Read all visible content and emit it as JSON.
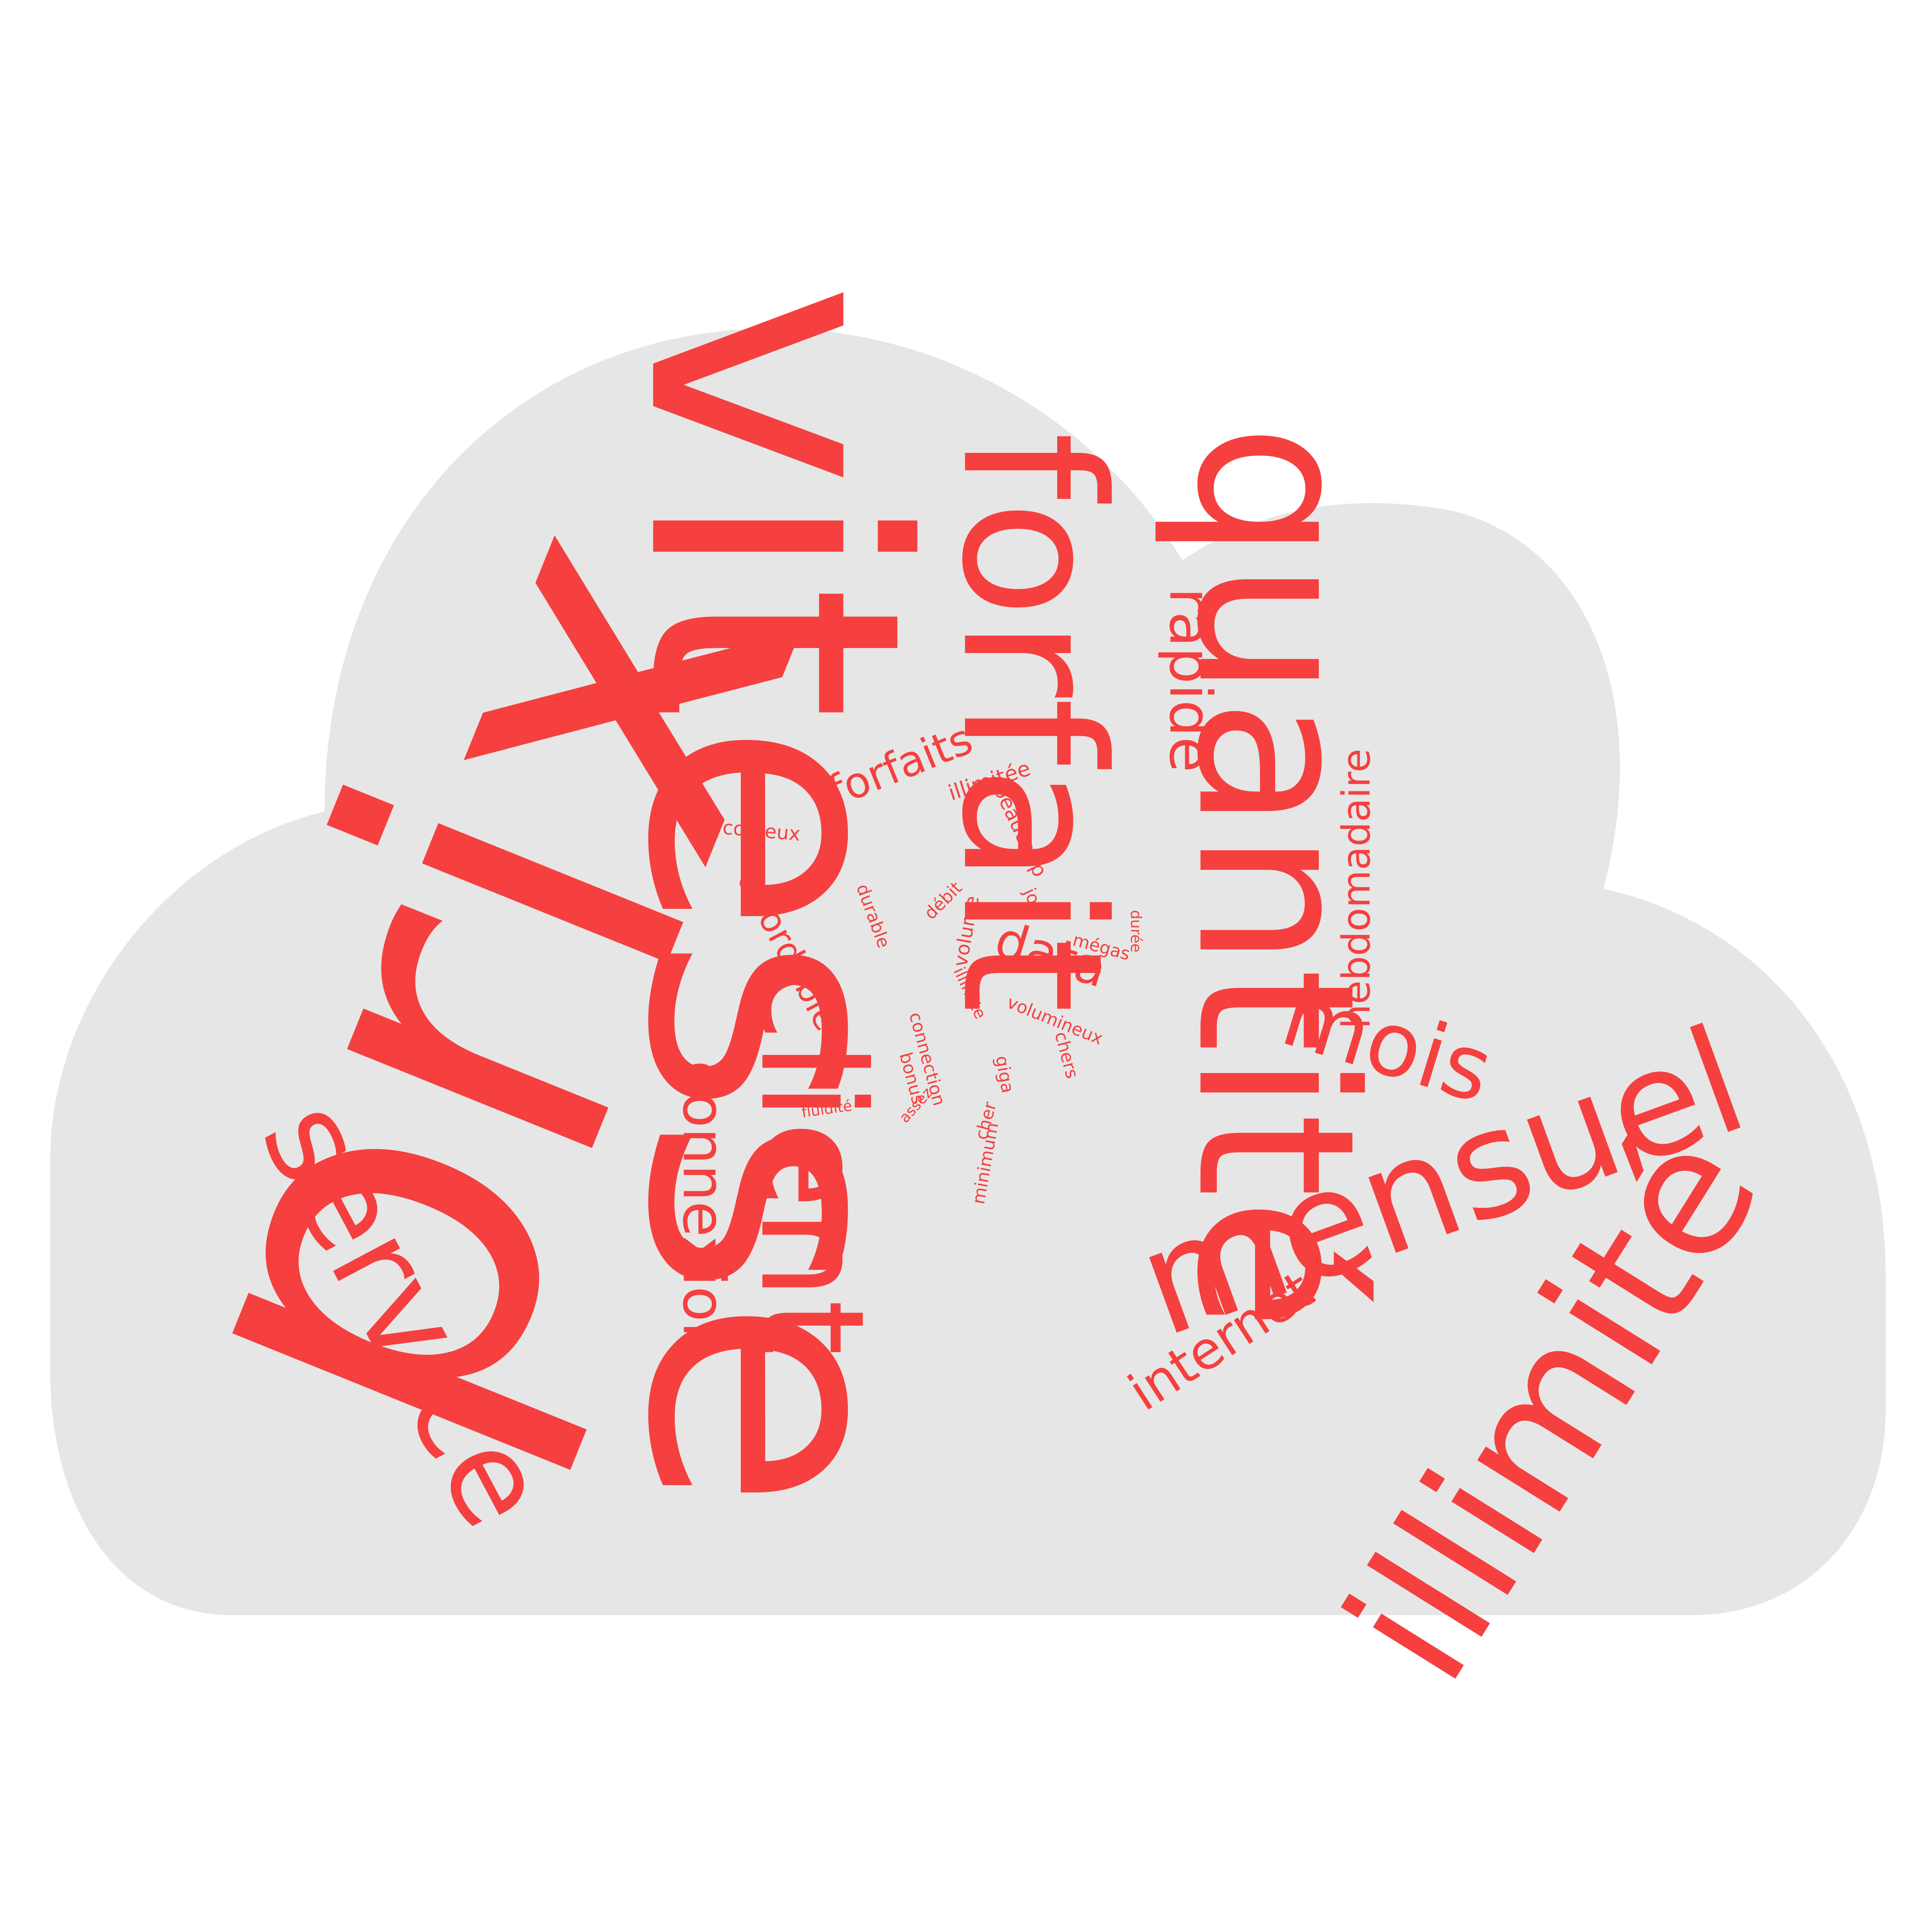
{
  "colors": {
    "background": "#ffffff",
    "cloud": "#e6e6e6",
    "text": "#f5403f"
  },
  "words": [
    {
      "id": "prix",
      "text": "prix"
    },
    {
      "id": "vitesse",
      "text": "vitesse"
    },
    {
      "id": "quantite",
      "text": "quantité"
    },
    {
      "id": "forfait",
      "text": "forfait"
    },
    {
      "id": "illimite",
      "text": "illimité"
    },
    {
      "id": "mensuel",
      "text": "mensuel"
    },
    {
      "id": "service",
      "text": "service"
    },
    {
      "id": "client",
      "text": "client"
    },
    {
      "id": "mois",
      "text": "mois"
    },
    {
      "id": "connexion",
      "text": "connexion"
    },
    {
      "id": "rapide",
      "text": "rapide"
    },
    {
      "id": "internet",
      "text": "internet"
    },
    {
      "id": "hebdomadaire",
      "text": "hebdomadaire"
    },
    {
      "id": "data",
      "text": "data"
    },
    {
      "id": "forfaits",
      "text": "forfaits"
    },
    {
      "id": "abordable",
      "text": "abordable"
    },
    {
      "id": "illimitee",
      "text": "illimitée"
    },
    {
      "id": "couteux",
      "text": "coûteux"
    },
    {
      "id": "beaucoup",
      "text": "beaucoup"
    },
    {
      "id": "durable",
      "text": "durable"
    },
    {
      "id": "debit",
      "text": "débit"
    },
    {
      "id": "volume",
      "text": "volume"
    },
    {
      "id": "jour",
      "text": "jour"
    },
    {
      "id": "megas",
      "text": "mégas"
    },
    {
      "id": "duree",
      "text": "durée"
    },
    {
      "id": "illimite-small",
      "text": "illimite"
    },
    {
      "id": "volumineux",
      "text": "volumineux"
    },
    {
      "id": "connection",
      "text": "connection"
    },
    {
      "id": "bonus",
      "text": "bonus"
    },
    {
      "id": "chers",
      "text": "chers"
    },
    {
      "id": "giga",
      "text": "giga"
    },
    {
      "id": "fluidite",
      "text": "fluidité"
    },
    {
      "id": "assez",
      "text": "assez"
    },
    {
      "id": "cher",
      "text": "cher"
    },
    {
      "id": "minimum",
      "text": "minimum"
    }
  ]
}
